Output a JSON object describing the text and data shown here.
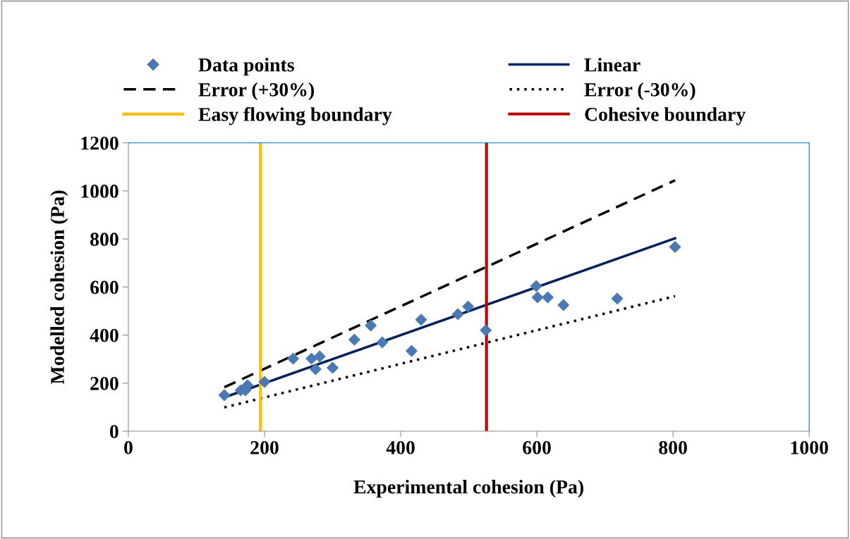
{
  "chart_data": {
    "type": "scatter",
    "xlabel": "Experimental cohesion (Pa)",
    "ylabel": "Modelled cohesion (Pa)",
    "xlim": [
      0,
      1000
    ],
    "xticks": [
      0,
      200,
      400,
      600,
      800,
      1000
    ],
    "ylim": [
      0,
      1200
    ],
    "yticks": [
      0,
      200,
      400,
      600,
      800,
      1000,
      1200
    ],
    "grid": false,
    "legend": "top",
    "series": [
      {
        "name": "Data points",
        "marker": "diamond",
        "color": "#4a7ab5",
        "x": [
          141,
          165,
          172,
          175,
          200,
          242,
          269,
          275,
          281,
          300,
          332,
          356,
          373,
          416,
          430,
          484,
          499,
          525,
          599,
          601,
          616,
          639,
          718,
          803
        ],
        "values": [
          150,
          170,
          170,
          191,
          205,
          302,
          302,
          258,
          311,
          264,
          381,
          440,
          370,
          334,
          464,
          487,
          519,
          420,
          604,
          557,
          557,
          525,
          552,
          767
        ]
      },
      {
        "name": "Linear",
        "type": "line",
        "line_style": "solid",
        "marker": "none",
        "color": "#002060",
        "x": [
          141,
          803
        ],
        "values": [
          141,
          803
        ]
      },
      {
        "name": "Error (+30%)",
        "type": "line",
        "line_style": "dashed",
        "marker": "none",
        "color": "#000000",
        "x": [
          141,
          803
        ],
        "values": [
          183,
          1044
        ]
      },
      {
        "name": "Error (-30%)",
        "type": "line",
        "line_style": "dotted",
        "marker": "none",
        "color": "#000000",
        "x": [
          141,
          803
        ],
        "values": [
          99,
          562
        ]
      }
    ],
    "ref_lines": [
      {
        "axis": "x",
        "value": 194,
        "label": "Easy flowing boundary",
        "color": "#ffc000",
        "line_style": "solid"
      },
      {
        "axis": "x",
        "value": 526,
        "label": "Cohesive boundary",
        "color": "#c00000",
        "line_style": "solid"
      }
    ]
  }
}
